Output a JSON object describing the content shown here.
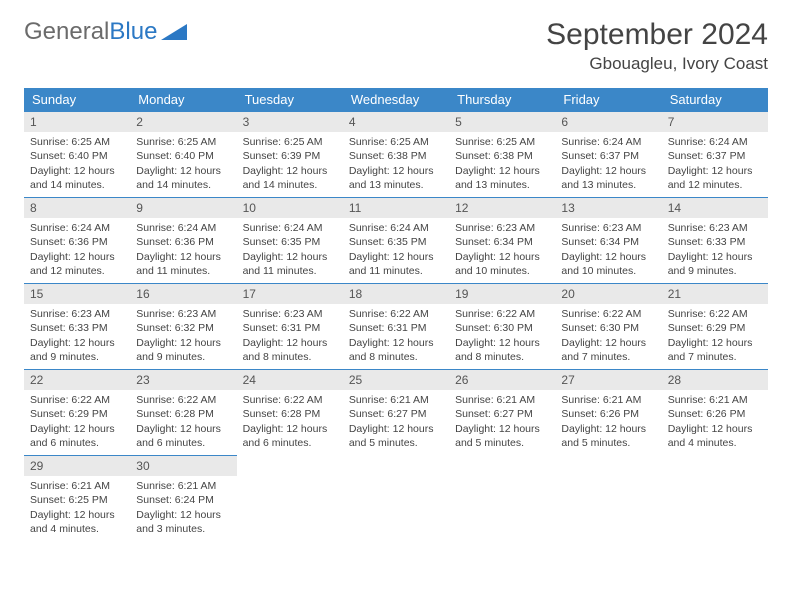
{
  "logo": {
    "text1": "General",
    "text2": "Blue",
    "triangle_color": "#2b78c4"
  },
  "title": "September 2024",
  "location": "Gbouagleu, Ivory Coast",
  "colors": {
    "header_bg": "#3b87c8",
    "header_text": "#ffffff",
    "daynum_bg": "#e9e9e9",
    "border": "#3b87c8"
  },
  "weekdays": [
    "Sunday",
    "Monday",
    "Tuesday",
    "Wednesday",
    "Thursday",
    "Friday",
    "Saturday"
  ],
  "weeks": [
    [
      {
        "n": "1",
        "sr": "6:25 AM",
        "ss": "6:40 PM",
        "dl": "12 hours and 14 minutes."
      },
      {
        "n": "2",
        "sr": "6:25 AM",
        "ss": "6:40 PM",
        "dl": "12 hours and 14 minutes."
      },
      {
        "n": "3",
        "sr": "6:25 AM",
        "ss": "6:39 PM",
        "dl": "12 hours and 14 minutes."
      },
      {
        "n": "4",
        "sr": "6:25 AM",
        "ss": "6:38 PM",
        "dl": "12 hours and 13 minutes."
      },
      {
        "n": "5",
        "sr": "6:25 AM",
        "ss": "6:38 PM",
        "dl": "12 hours and 13 minutes."
      },
      {
        "n": "6",
        "sr": "6:24 AM",
        "ss": "6:37 PM",
        "dl": "12 hours and 13 minutes."
      },
      {
        "n": "7",
        "sr": "6:24 AM",
        "ss": "6:37 PM",
        "dl": "12 hours and 12 minutes."
      }
    ],
    [
      {
        "n": "8",
        "sr": "6:24 AM",
        "ss": "6:36 PM",
        "dl": "12 hours and 12 minutes."
      },
      {
        "n": "9",
        "sr": "6:24 AM",
        "ss": "6:36 PM",
        "dl": "12 hours and 11 minutes."
      },
      {
        "n": "10",
        "sr": "6:24 AM",
        "ss": "6:35 PM",
        "dl": "12 hours and 11 minutes."
      },
      {
        "n": "11",
        "sr": "6:24 AM",
        "ss": "6:35 PM",
        "dl": "12 hours and 11 minutes."
      },
      {
        "n": "12",
        "sr": "6:23 AM",
        "ss": "6:34 PM",
        "dl": "12 hours and 10 minutes."
      },
      {
        "n": "13",
        "sr": "6:23 AM",
        "ss": "6:34 PM",
        "dl": "12 hours and 10 minutes."
      },
      {
        "n": "14",
        "sr": "6:23 AM",
        "ss": "6:33 PM",
        "dl": "12 hours and 9 minutes."
      }
    ],
    [
      {
        "n": "15",
        "sr": "6:23 AM",
        "ss": "6:33 PM",
        "dl": "12 hours and 9 minutes."
      },
      {
        "n": "16",
        "sr": "6:23 AM",
        "ss": "6:32 PM",
        "dl": "12 hours and 9 minutes."
      },
      {
        "n": "17",
        "sr": "6:23 AM",
        "ss": "6:31 PM",
        "dl": "12 hours and 8 minutes."
      },
      {
        "n": "18",
        "sr": "6:22 AM",
        "ss": "6:31 PM",
        "dl": "12 hours and 8 minutes."
      },
      {
        "n": "19",
        "sr": "6:22 AM",
        "ss": "6:30 PM",
        "dl": "12 hours and 8 minutes."
      },
      {
        "n": "20",
        "sr": "6:22 AM",
        "ss": "6:30 PM",
        "dl": "12 hours and 7 minutes."
      },
      {
        "n": "21",
        "sr": "6:22 AM",
        "ss": "6:29 PM",
        "dl": "12 hours and 7 minutes."
      }
    ],
    [
      {
        "n": "22",
        "sr": "6:22 AM",
        "ss": "6:29 PM",
        "dl": "12 hours and 6 minutes."
      },
      {
        "n": "23",
        "sr": "6:22 AM",
        "ss": "6:28 PM",
        "dl": "12 hours and 6 minutes."
      },
      {
        "n": "24",
        "sr": "6:22 AM",
        "ss": "6:28 PM",
        "dl": "12 hours and 6 minutes."
      },
      {
        "n": "25",
        "sr": "6:21 AM",
        "ss": "6:27 PM",
        "dl": "12 hours and 5 minutes."
      },
      {
        "n": "26",
        "sr": "6:21 AM",
        "ss": "6:27 PM",
        "dl": "12 hours and 5 minutes."
      },
      {
        "n": "27",
        "sr": "6:21 AM",
        "ss": "6:26 PM",
        "dl": "12 hours and 5 minutes."
      },
      {
        "n": "28",
        "sr": "6:21 AM",
        "ss": "6:26 PM",
        "dl": "12 hours and 4 minutes."
      }
    ],
    [
      {
        "n": "29",
        "sr": "6:21 AM",
        "ss": "6:25 PM",
        "dl": "12 hours and 4 minutes."
      },
      {
        "n": "30",
        "sr": "6:21 AM",
        "ss": "6:24 PM",
        "dl": "12 hours and 3 minutes."
      },
      null,
      null,
      null,
      null,
      null
    ]
  ],
  "labels": {
    "sunrise": "Sunrise:",
    "sunset": "Sunset:",
    "daylight": "Daylight:"
  }
}
